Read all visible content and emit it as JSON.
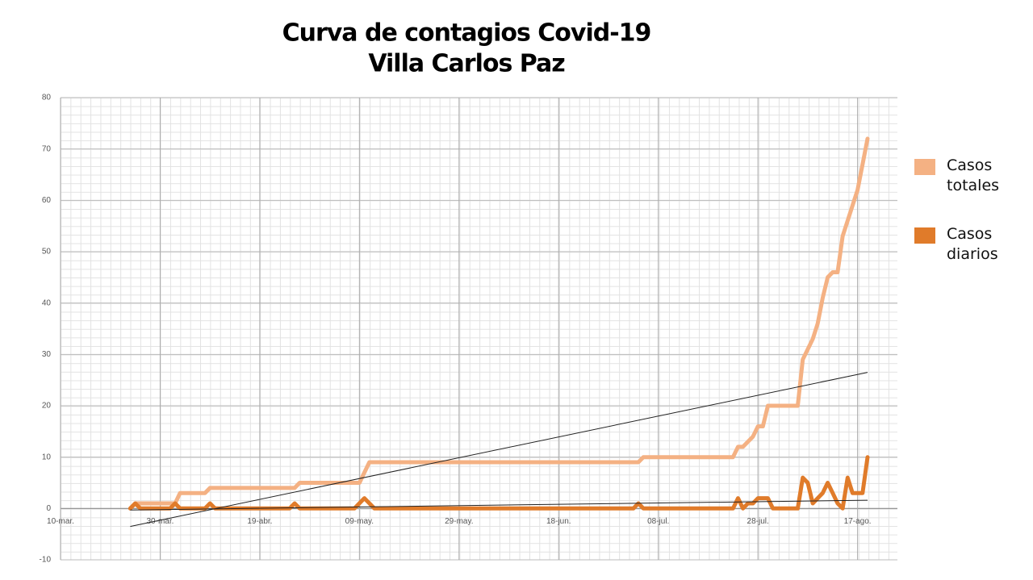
{
  "chart_data": {
    "type": "line",
    "title": "Curva de contagios Covid-19",
    "subtitle": "Villa Carlos Paz",
    "xlim": [
      0,
      168
    ],
    "xticks": [
      {
        "value": 0,
        "label": "10-mar."
      },
      {
        "value": 20,
        "label": "30-mar."
      },
      {
        "value": 40,
        "label": "19-abr."
      },
      {
        "value": 60,
        "label": "09-may."
      },
      {
        "value": 80,
        "label": "29-may."
      },
      {
        "value": 100,
        "label": "18-jun."
      },
      {
        "value": 120,
        "label": "08-jul."
      },
      {
        "value": 140,
        "label": "28-jul."
      },
      {
        "value": 160,
        "label": "17-ago."
      }
    ],
    "ylim": [
      -10,
      80
    ],
    "yticks": [
      -10,
      0,
      10,
      20,
      30,
      40,
      50,
      60,
      70,
      80
    ],
    "grid": true,
    "legend": "right",
    "series": [
      {
        "name": "Casos totales",
        "color": "#f4b183",
        "x": [
          14,
          15,
          23,
          24,
          29,
          30,
          47,
          48,
          60,
          62,
          116,
          117,
          135,
          136,
          137,
          139,
          140,
          141,
          142,
          148,
          149,
          150,
          151,
          152,
          153,
          154,
          155,
          156,
          157,
          159,
          160,
          162
        ],
        "values": [
          0,
          1,
          1,
          3,
          3,
          4,
          4,
          5,
          5,
          9,
          9,
          10,
          10,
          12,
          12,
          14,
          16,
          16,
          20,
          20,
          29,
          31,
          33,
          36,
          41,
          45,
          46,
          46,
          53,
          59,
          62,
          72
        ]
      },
      {
        "name": "Casos diarios",
        "color": "#e07b2a",
        "x": [
          14,
          15,
          16,
          22,
          23,
          24,
          29,
          30,
          31,
          46,
          47,
          48,
          59,
          61,
          63,
          115,
          116,
          117,
          135,
          136,
          137,
          138,
          139,
          140,
          142,
          143,
          148,
          149,
          150,
          151,
          152,
          153,
          154,
          155,
          156,
          157,
          158,
          159,
          160,
          161,
          162
        ],
        "values": [
          0,
          1,
          0,
          0,
          1,
          0,
          0,
          1,
          0,
          0,
          1,
          0,
          0,
          2,
          0,
          0,
          1,
          0,
          0,
          2,
          0,
          1,
          1,
          2,
          2,
          0,
          0,
          6,
          5,
          1,
          2,
          3,
          5,
          3,
          1,
          0,
          6,
          3,
          3,
          3,
          10
        ]
      }
    ],
    "trendlines": [
      {
        "x": [
          14,
          162
        ],
        "values": [
          -3.5,
          26.5
        ]
      },
      {
        "x": [
          14,
          162
        ],
        "values": [
          -0.3,
          1.6
        ]
      }
    ]
  }
}
